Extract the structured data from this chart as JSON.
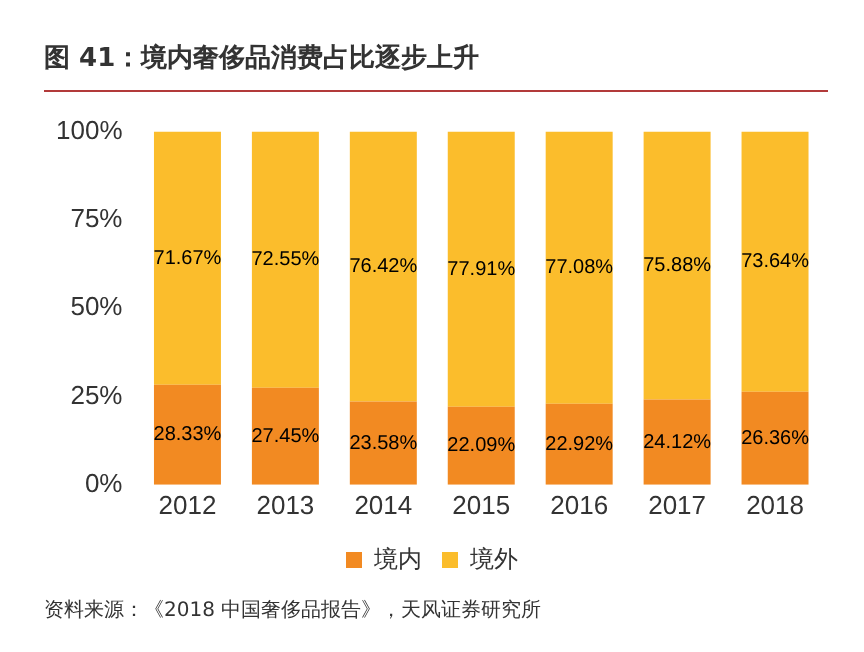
{
  "chart_data": {
    "type": "bar",
    "title": "图 41：境内奢侈品消费占比逐步上升",
    "stacked": true,
    "categories": [
      "2012",
      "2013",
      "2014",
      "2015",
      "2016",
      "2017",
      "2018"
    ],
    "series": [
      {
        "name": "境内",
        "color": "#f28a22",
        "values": [
          28.33,
          27.45,
          23.58,
          22.09,
          22.92,
          24.12,
          26.36
        ],
        "value_labels": [
          "28.33%",
          "27.45%",
          "23.58%",
          "22.09%",
          "22.92%",
          "24.12%",
          "26.36%"
        ]
      },
      {
        "name": "境外",
        "color": "#fbbd2c",
        "values": [
          71.67,
          72.55,
          76.42,
          77.91,
          77.08,
          75.88,
          73.64
        ],
        "value_labels": [
          "71.67%",
          "72.55%",
          "76.42%",
          "77.91%",
          "77.08%",
          "75.88%",
          "73.64%"
        ]
      }
    ],
    "ylim": [
      0,
      100
    ],
    "yticks": [
      {
        "value": 0,
        "label": "0%"
      },
      {
        "value": 25,
        "label": "25%"
      },
      {
        "value": 50,
        "label": "50%"
      },
      {
        "value": 75,
        "label": "75%"
      },
      {
        "value": 100,
        "label": "100%"
      }
    ],
    "grid": false,
    "legend": "bottom",
    "annotations": [
      "资料来源：《2018 中国奢侈品报告》，天风证券研究所"
    ]
  }
}
